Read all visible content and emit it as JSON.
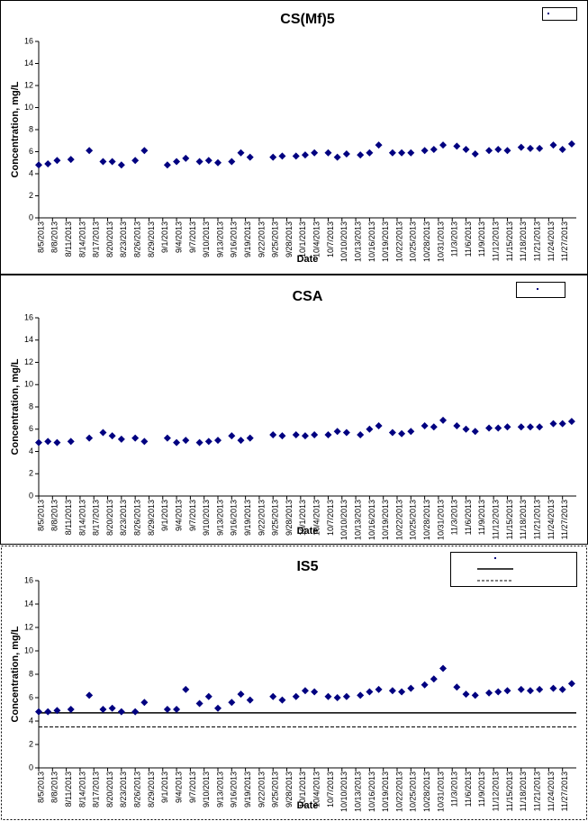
{
  "chart_data": [
    {
      "type": "scatter",
      "title": "CS(Mf)5",
      "x_label": "Date",
      "y_label": "Concentration, mg/L",
      "color": "#000080",
      "x": [
        "8/5/2013",
        "8/7/2013",
        "8/9/2013",
        "8/12/2013",
        "8/16/2013",
        "8/19/2013",
        "8/21/2013",
        "8/23/2013",
        "8/26/2013",
        "8/28/2013",
        "9/2/2013",
        "9/4/2013",
        "9/6/2013",
        "9/9/2013",
        "9/11/2013",
        "9/13/2013",
        "9/16/2013",
        "9/18/2013",
        "9/20/2013",
        "9/25/2013",
        "9/27/2013",
        "9/30/2013",
        "10/2/2013",
        "10/4/2013",
        "10/7/2013",
        "10/9/2013",
        "10/11/2013",
        "10/14/2013",
        "10/16/2013",
        "10/18/2013",
        "10/21/2013",
        "10/23/2013",
        "10/25/2013",
        "10/28/2013",
        "10/30/2013",
        "11/1/2013",
        "11/4/2013",
        "11/6/2013",
        "11/8/2013",
        "11/11/2013",
        "11/13/2013",
        "11/15/2013",
        "11/18/2013",
        "11/20/2013",
        "11/22/2013",
        "11/25/2013",
        "11/27/2013",
        "11/29/2013"
      ],
      "values": [
        4.8,
        4.9,
        5.2,
        5.3,
        6.1,
        5.1,
        5.1,
        4.8,
        5.2,
        6.1,
        4.8,
        5.1,
        5.4,
        5.1,
        5.2,
        5.0,
        5.1,
        5.9,
        5.5,
        5.5,
        5.6,
        5.6,
        5.7,
        5.9,
        5.9,
        5.5,
        5.8,
        5.7,
        5.9,
        6.6,
        5.9,
        5.9,
        5.9,
        6.1,
        6.2,
        6.6,
        6.5,
        6.2,
        5.8,
        6.1,
        6.2,
        6.1,
        6.4,
        6.3,
        6.3,
        6.6,
        6.2,
        6.7
      ],
      "xlim": [
        "8/5/2013",
        "11/30/2013"
      ],
      "xticks": [
        "8/5/2013",
        "8/8/2013",
        "8/11/2013",
        "8/14/2013",
        "8/17/2013",
        "8/20/2013",
        "8/23/2013",
        "8/26/2013",
        "8/29/2013",
        "9/1/2013",
        "9/4/2013",
        "9/7/2013",
        "9/10/2013",
        "9/13/2013",
        "9/16/2013",
        "9/19/2013",
        "9/22/2013",
        "9/25/2013",
        "9/28/2013",
        "10/1/2013",
        "10/4/2013",
        "10/7/2013",
        "10/10/2013",
        "10/13/2013",
        "10/16/2013",
        "10/19/2013",
        "10/22/2013",
        "10/25/2013",
        "10/28/2013",
        "10/31/2013",
        "11/3/2013",
        "11/6/2013",
        "11/9/2013",
        "11/12/2013",
        "11/15/2013",
        "11/18/2013",
        "11/21/2013",
        "11/24/2013",
        "11/27/2013"
      ],
      "ylim": [
        0,
        16
      ],
      "yticks": [
        0,
        2,
        4,
        6,
        8,
        10,
        12,
        14,
        16
      ]
    },
    {
      "type": "scatter",
      "title": "CSA",
      "x_label": "Date",
      "y_label": "Concentration, mg/L",
      "color": "#000080",
      "x": [
        "8/5/2013",
        "8/7/2013",
        "8/9/2013",
        "8/12/2013",
        "8/16/2013",
        "8/19/2013",
        "8/21/2013",
        "8/23/2013",
        "8/26/2013",
        "8/28/2013",
        "9/2/2013",
        "9/4/2013",
        "9/6/2013",
        "9/9/2013",
        "9/11/2013",
        "9/13/2013",
        "9/16/2013",
        "9/18/2013",
        "9/20/2013",
        "9/25/2013",
        "9/27/2013",
        "9/30/2013",
        "10/2/2013",
        "10/4/2013",
        "10/7/2013",
        "10/9/2013",
        "10/11/2013",
        "10/14/2013",
        "10/16/2013",
        "10/18/2013",
        "10/21/2013",
        "10/23/2013",
        "10/25/2013",
        "10/28/2013",
        "10/30/2013",
        "11/1/2013",
        "11/4/2013",
        "11/6/2013",
        "11/8/2013",
        "11/11/2013",
        "11/13/2013",
        "11/15/2013",
        "11/18/2013",
        "11/20/2013",
        "11/22/2013",
        "11/25/2013",
        "11/27/2013",
        "11/29/2013"
      ],
      "values": [
        4.8,
        4.9,
        4.8,
        4.9,
        5.2,
        5.7,
        5.4,
        5.1,
        5.2,
        4.9,
        5.2,
        4.8,
        5.0,
        4.8,
        4.9,
        5.0,
        5.4,
        5.0,
        5.2,
        5.5,
        5.4,
        5.5,
        5.4,
        5.5,
        5.5,
        5.8,
        5.7,
        5.5,
        6.0,
        6.3,
        5.7,
        5.6,
        5.8,
        6.3,
        6.2,
        6.8,
        6.3,
        6.0,
        5.8,
        6.1,
        6.1,
        6.2,
        6.2,
        6.2,
        6.2,
        6.5,
        6.5,
        6.7
      ],
      "xlim": [
        "8/5/2013",
        "11/30/2013"
      ],
      "xticks": [
        "8/5/2013",
        "8/8/2013",
        "8/11/2013",
        "8/14/2013",
        "8/17/2013",
        "8/20/2013",
        "8/23/2013",
        "8/26/2013",
        "8/29/2013",
        "9/1/2013",
        "9/4/2013",
        "9/7/2013",
        "9/10/2013",
        "9/13/2013",
        "9/16/2013",
        "9/19/2013",
        "9/22/2013",
        "9/25/2013",
        "9/28/2013",
        "10/1/2013",
        "10/4/2013",
        "10/7/2013",
        "10/10/2013",
        "10/13/2013",
        "10/16/2013",
        "10/19/2013",
        "10/22/2013",
        "10/25/2013",
        "10/28/2013",
        "10/31/2013",
        "11/3/2013",
        "11/6/2013",
        "11/9/2013",
        "11/12/2013",
        "11/15/2013",
        "11/18/2013",
        "11/21/2013",
        "11/24/2013",
        "11/27/2013"
      ],
      "ylim": [
        0,
        16
      ],
      "yticks": [
        0,
        2,
        4,
        6,
        8,
        10,
        12,
        14,
        16
      ]
    },
    {
      "type": "scatter",
      "title": "IS5",
      "x_label": "Date",
      "y_label": "Concentration, mg/L",
      "color": "#000080",
      "x": [
        "8/5/2013",
        "8/7/2013",
        "8/9/2013",
        "8/12/2013",
        "8/16/2013",
        "8/19/2013",
        "8/21/2013",
        "8/23/2013",
        "8/26/2013",
        "8/28/2013",
        "9/2/2013",
        "9/4/2013",
        "9/6/2013",
        "9/9/2013",
        "9/11/2013",
        "9/13/2013",
        "9/16/2013",
        "9/18/2013",
        "9/20/2013",
        "9/25/2013",
        "9/27/2013",
        "9/30/2013",
        "10/2/2013",
        "10/4/2013",
        "10/7/2013",
        "10/9/2013",
        "10/11/2013",
        "10/14/2013",
        "10/16/2013",
        "10/18/2013",
        "10/21/2013",
        "10/23/2013",
        "10/25/2013",
        "10/28/2013",
        "10/30/2013",
        "11/1/2013",
        "11/4/2013",
        "11/6/2013",
        "11/8/2013",
        "11/11/2013",
        "11/13/2013",
        "11/15/2013",
        "11/18/2013",
        "11/20/2013",
        "11/22/2013",
        "11/25/2013",
        "11/27/2013",
        "11/29/2013"
      ],
      "values": [
        4.8,
        4.8,
        4.9,
        5.0,
        6.2,
        5.0,
        5.1,
        4.8,
        4.8,
        5.6,
        5.0,
        5.0,
        6.7,
        5.5,
        6.1,
        5.1,
        5.6,
        6.3,
        5.8,
        6.1,
        5.8,
        6.1,
        6.6,
        6.5,
        6.1,
        6.0,
        6.1,
        6.2,
        6.5,
        6.7,
        6.6,
        6.5,
        6.8,
        7.1,
        7.6,
        8.5,
        6.9,
        6.3,
        6.2,
        6.4,
        6.5,
        6.6,
        6.7,
        6.6,
        6.7,
        6.8,
        6.7,
        7.2
      ],
      "reference_lines": [
        {
          "value": 4.7,
          "style": "solid"
        },
        {
          "value": 3.5,
          "style": "dashed"
        }
      ],
      "xlim": [
        "8/5/2013",
        "11/30/2013"
      ],
      "xticks": [
        "8/5/2013",
        "8/8/2013",
        "8/11/2013",
        "8/14/2013",
        "8/17/2013",
        "8/20/2013",
        "8/23/2013",
        "8/26/2013",
        "8/29/2013",
        "9/1/2013",
        "9/4/2013",
        "9/7/2013",
        "9/10/2013",
        "9/13/2013",
        "9/16/2013",
        "9/19/2013",
        "9/22/2013",
        "9/25/2013",
        "9/28/2013",
        "10/1/2013",
        "10/4/2013",
        "10/7/2013",
        "10/10/2013",
        "10/13/2013",
        "10/16/2013",
        "10/19/2013",
        "10/22/2013",
        "10/25/2013",
        "10/28/2013",
        "10/31/2013",
        "11/3/2013",
        "11/6/2013",
        "11/9/2013",
        "11/12/2013",
        "11/15/2013",
        "11/18/2013",
        "11/21/2013",
        "11/24/2013",
        "11/27/2013"
      ],
      "ylim": [
        0,
        16
      ],
      "yticks": [
        0,
        2,
        4,
        6,
        8,
        10,
        12,
        14,
        16
      ]
    }
  ]
}
